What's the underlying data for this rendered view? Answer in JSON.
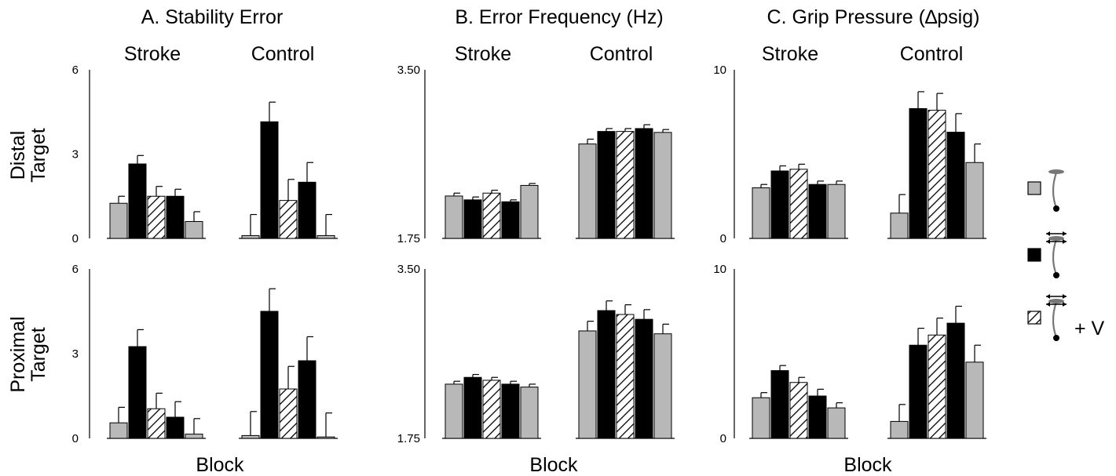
{
  "row_labels": [
    {
      "line1": "Distal",
      "line2": "Target"
    },
    {
      "line1": "Proximal",
      "line2": "Target"
    }
  ],
  "legend": {
    "items": [
      {
        "pattern": "gray",
        "icon": "gray-condition-icon"
      },
      {
        "pattern": "black",
        "icon": "black-condition-icon"
      },
      {
        "pattern": "hatch",
        "icon": "hatch-condition-icon",
        "suffix": "+ V"
      }
    ]
  },
  "colors": {
    "gray": "#b8b8b8",
    "black": "#000000",
    "white": "#ffffff",
    "stroke": "#000000",
    "icon_gray": "#777777"
  },
  "chart_data": [
    {
      "type": "bar",
      "title": "A. Stability Error",
      "groups": [
        "Stroke",
        "Control"
      ],
      "xlabel": "Block",
      "ylim": [
        0,
        6
      ],
      "yticks": [
        "0",
        "3",
        "6"
      ],
      "bar_patterns": [
        "gray",
        "black",
        "hatch",
        "black",
        "gray"
      ],
      "rows": [
        {
          "row": "Distal Target",
          "values": {
            "Stroke": [
              1.25,
              2.65,
              1.5,
              1.5,
              0.6
            ],
            "Control": [
              0.1,
              4.15,
              1.35,
              2.0,
              0.1
            ]
          },
          "errors": {
            "Stroke": [
              0.25,
              0.3,
              0.35,
              0.25,
              0.35
            ],
            "Control": [
              0.75,
              0.7,
              0.75,
              0.7,
              0.75
            ]
          }
        },
        {
          "row": "Proximal Target",
          "values": {
            "Stroke": [
              0.55,
              3.25,
              1.05,
              0.75,
              0.15
            ],
            "Control": [
              0.1,
              4.5,
              1.75,
              2.75,
              0.05
            ]
          },
          "errors": {
            "Stroke": [
              0.55,
              0.6,
              0.55,
              0.55,
              0.55
            ],
            "Control": [
              0.85,
              0.8,
              0.8,
              0.85,
              0.85
            ]
          }
        }
      ]
    },
    {
      "type": "bar",
      "title": "B. Error Frequency (Hz)",
      "groups": [
        "Stroke",
        "Control"
      ],
      "xlabel": "Block",
      "ylim": [
        1.75,
        3.5
      ],
      "yticks": [
        "1.75",
        "",
        "3.50"
      ],
      "bar_patterns": [
        "gray",
        "black",
        "hatch",
        "black",
        "gray"
      ],
      "rows": [
        {
          "row": "Distal Target",
          "values": {
            "Stroke": [
              2.19,
              2.15,
              2.22,
              2.13,
              2.3
            ],
            "Control": [
              2.73,
              2.86,
              2.86,
              2.89,
              2.85
            ]
          },
          "errors": {
            "Stroke": [
              0.03,
              0.03,
              0.03,
              0.02,
              0.02
            ],
            "Control": [
              0.05,
              0.03,
              0.03,
              0.04,
              0.03
            ]
          }
        },
        {
          "row": "Proximal Target",
          "values": {
            "Stroke": [
              2.31,
              2.38,
              2.35,
              2.31,
              2.28
            ],
            "Control": [
              2.86,
              3.07,
              3.03,
              2.98,
              2.83
            ]
          },
          "errors": {
            "Stroke": [
              0.03,
              0.03,
              0.03,
              0.03,
              0.03
            ],
            "Control": [
              0.1,
              0.1,
              0.1,
              0.1,
              0.1
            ]
          }
        }
      ]
    },
    {
      "type": "bar",
      "title": "C. Grip Pressure (∆psig)",
      "groups": [
        "Stroke",
        "Control"
      ],
      "xlabel": "Block",
      "ylim": [
        0,
        10
      ],
      "yticks": [
        "0",
        "",
        "10"
      ],
      "bar_patterns": [
        "gray",
        "black",
        "hatch",
        "black",
        "gray"
      ],
      "rows": [
        {
          "row": "Distal Target",
          "values": {
            "Stroke": [
              3.0,
              4.0,
              4.1,
              3.2,
              3.2
            ],
            "Control": [
              1.5,
              7.7,
              7.6,
              6.3,
              4.5
            ]
          },
          "errors": {
            "Stroke": [
              0.2,
              0.3,
              0.3,
              0.2,
              0.2
            ],
            "Control": [
              1.1,
              1.0,
              1.0,
              1.1,
              1.1
            ]
          }
        },
        {
          "row": "Proximal Target",
          "values": {
            "Stroke": [
              2.4,
              4.0,
              3.3,
              2.5,
              1.8
            ],
            "Control": [
              1.0,
              5.5,
              6.1,
              6.8,
              4.5
            ]
          },
          "errors": {
            "Stroke": [
              0.3,
              0.3,
              0.3,
              0.4,
              0.3
            ],
            "Control": [
              1.0,
              1.0,
              1.0,
              1.0,
              1.0
            ]
          }
        }
      ]
    }
  ]
}
